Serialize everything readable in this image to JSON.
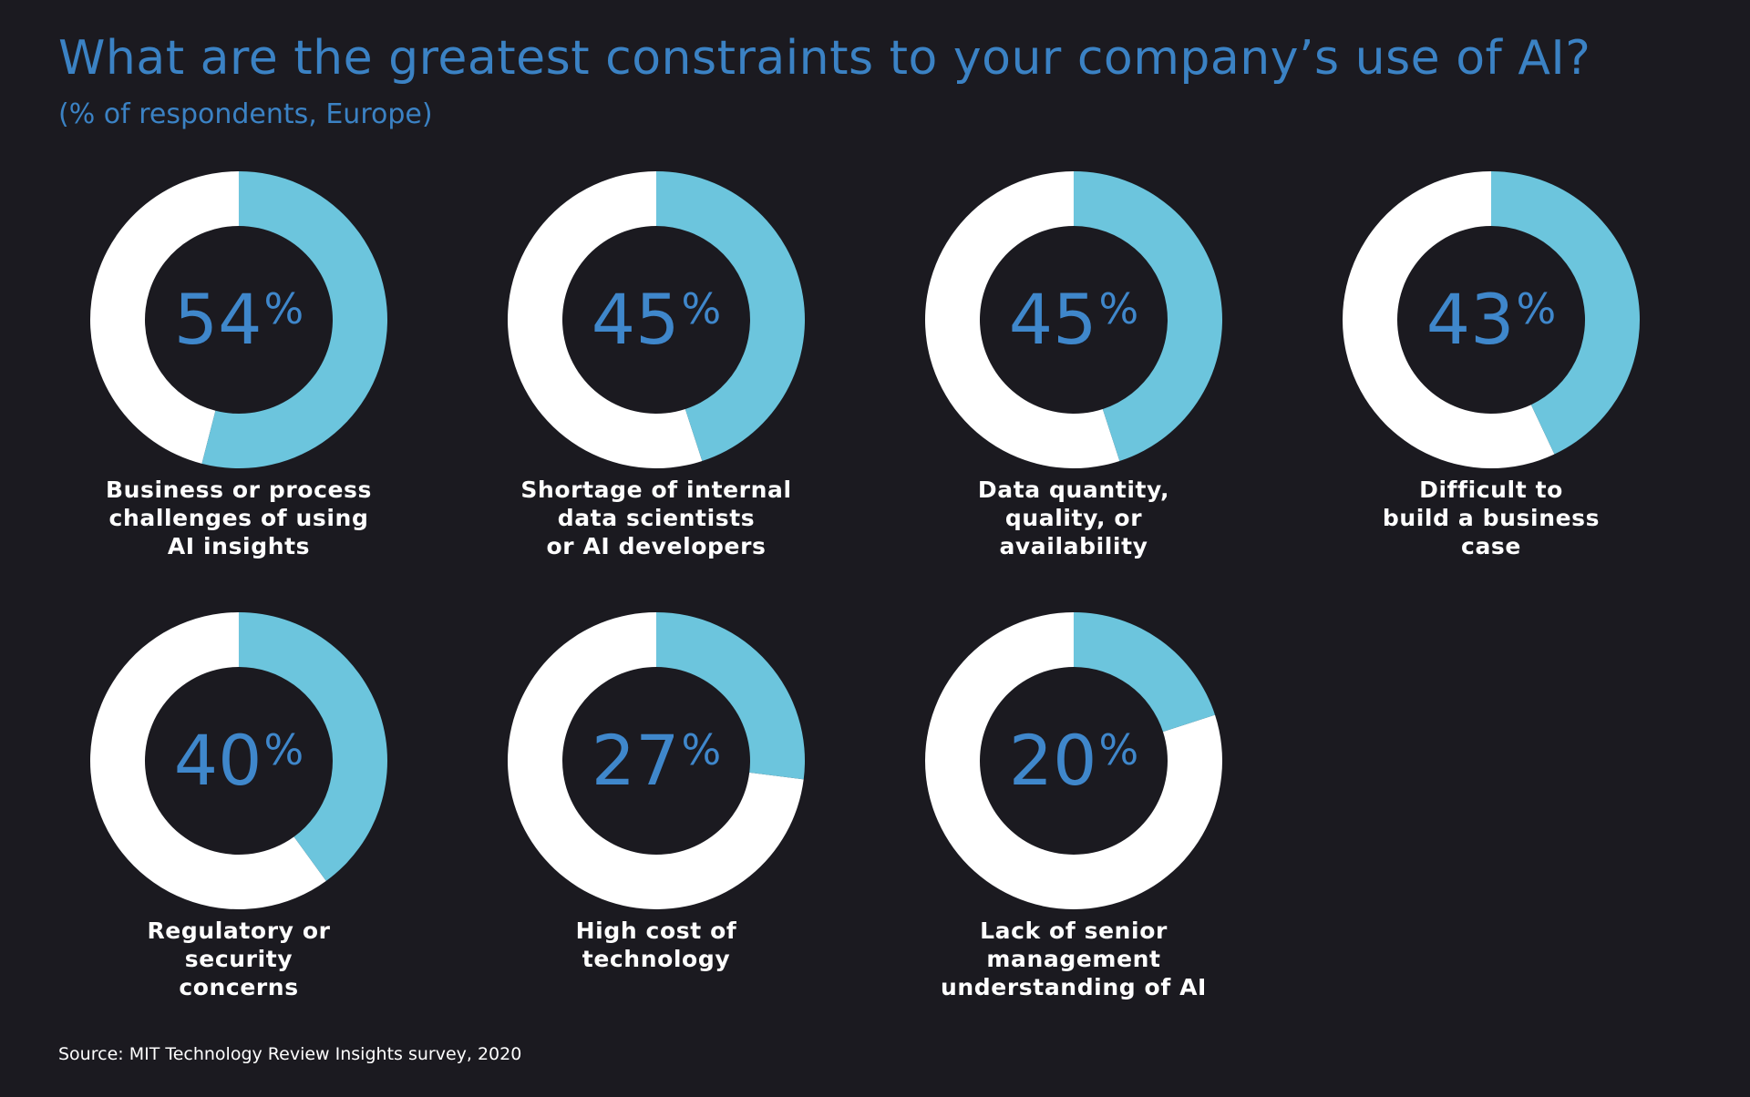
{
  "chart_data": {
    "type": "donut",
    "title": "What are the greatest constraints to your company’s use of AI?",
    "subtitle": "(% of respondents, Europe)",
    "unit": "%",
    "categories": [
      "Business or process\nchallenges of using\nAI insights",
      "Shortage of internal\ndata scientists\nor AI developers",
      "Data quantity,\nquality, or\navailability",
      "Difficult to\nbuild a business\ncase",
      "Regulatory or\nsecurity\nconcerns",
      "High cost of\ntechnology",
      "Lack of senior\nmanagement\nunderstanding of AI"
    ],
    "values": [
      54,
      45,
      45,
      43,
      40,
      27,
      20
    ],
    "value_labels": [
      "54",
      "45",
      "45",
      "43",
      "40",
      "27",
      "20"
    ],
    "source": "Source: MIT Technology Review Insights survey, 2020"
  },
  "colors": {
    "background": "#1b1a20",
    "accent_fill": "#6cc5dd",
    "remainder_fill": "#ffffff",
    "title": "#3b82c4",
    "value_text": "#3f87cb",
    "label_text": "#ffffff"
  }
}
